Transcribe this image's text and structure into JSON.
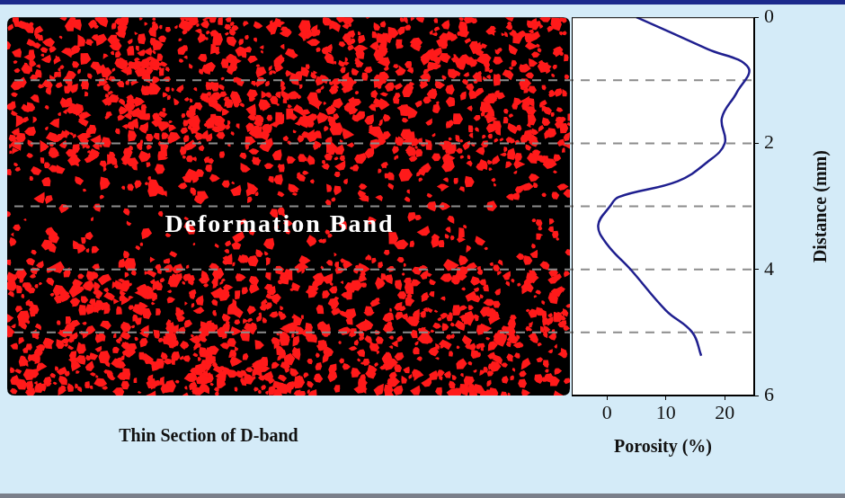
{
  "chart_data": {
    "type": "line",
    "x_label": "Porosity (%)",
    "y_label": "Distance (mm)",
    "x": [
      5,
      17,
      24,
      22,
      19.5,
      20,
      17,
      12,
      2,
      0.5,
      -1.5,
      0,
      4,
      10,
      14.5,
      16
    ],
    "values": [
      0,
      0.5,
      0.8,
      1.2,
      1.6,
      2.0,
      2.3,
      2.6,
      2.85,
      3.0,
      3.3,
      3.6,
      4.0,
      4.65,
      5.0,
      5.37
    ],
    "color": "#1f1f8f",
    "line_style": "solid",
    "xlim": [
      -6,
      25
    ],
    "xticks": [
      0,
      10,
      20
    ],
    "ylim": [
      6,
      0
    ],
    "yticks": [
      0,
      2,
      4,
      6
    ],
    "hlines": [
      1,
      2,
      3,
      4,
      5
    ],
    "grid": false
  },
  "image_panel": {
    "caption": "Thin Section of D-band",
    "label": "Deformation Band"
  }
}
